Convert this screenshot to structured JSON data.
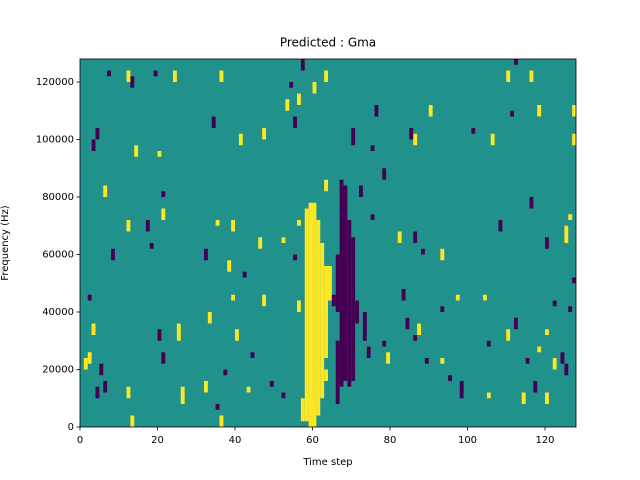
{
  "chart_data": {
    "type": "heatmap",
    "title": "Predicted : Gma",
    "x_label": "Time step",
    "y_label": "Frequency (Hz)",
    "xlim": [
      0,
      128
    ],
    "ylim": [
      0,
      128000
    ],
    "xticks": [
      0,
      20,
      40,
      60,
      80,
      100,
      120
    ],
    "yticks": [
      0,
      20000,
      40000,
      60000,
      80000,
      100000,
      120000
    ],
    "colormap": [
      {
        "value": -1,
        "color": "#440154"
      },
      {
        "value": 0,
        "color": "#21918c"
      },
      {
        "value": 1,
        "color": "#fde725"
      }
    ],
    "fill": 0,
    "cells": [
      [
        57,
        2000,
        10000,
        1
      ],
      [
        58,
        2000,
        76000,
        1
      ],
      [
        59,
        0,
        78000,
        1
      ],
      [
        60,
        0,
        78000,
        1
      ],
      [
        61,
        4000,
        72000,
        1
      ],
      [
        62,
        10000,
        64000,
        1
      ],
      [
        63,
        24000,
        56000,
        1
      ],
      [
        64,
        44000,
        56000,
        1
      ],
      [
        66,
        8000,
        30000,
        -1
      ],
      [
        66,
        40000,
        60000,
        -1
      ],
      [
        67,
        14000,
        86000,
        -1
      ],
      [
        68,
        16000,
        84000,
        -1
      ],
      [
        69,
        14000,
        72000,
        -1
      ],
      [
        70,
        16000,
        66000,
        -1
      ],
      [
        7,
        122000,
        124000,
        -1
      ],
      [
        13,
        118000,
        122000,
        -1
      ],
      [
        19,
        122000,
        124000,
        -1
      ],
      [
        34,
        104000,
        108000,
        -1
      ],
      [
        54,
        118000,
        120000,
        -1
      ],
      [
        55,
        104000,
        108000,
        -1
      ],
      [
        57,
        124000,
        128000,
        -1
      ],
      [
        70,
        98000,
        104000,
        -1
      ],
      [
        75,
        96000,
        98000,
        -1
      ],
      [
        76,
        108000,
        112000,
        -1
      ],
      [
        85,
        100000,
        104000,
        -1
      ],
      [
        101,
        102000,
        104000,
        -1
      ],
      [
        112,
        126000,
        128000,
        -1
      ],
      [
        111,
        108000,
        110000,
        -1
      ],
      [
        4,
        100000,
        104000,
        -1
      ],
      [
        3,
        96000,
        100000,
        -1
      ],
      [
        17,
        68000,
        72000,
        -1
      ],
      [
        8,
        58000,
        62000,
        -1
      ],
      [
        2,
        44000,
        46000,
        -1
      ],
      [
        18,
        62000,
        64000,
        -1
      ],
      [
        5,
        18000,
        22000,
        -1
      ],
      [
        4,
        10000,
        14000,
        -1
      ],
      [
        20,
        30000,
        34000,
        -1
      ],
      [
        21,
        22000,
        26000,
        -1
      ],
      [
        37,
        18000,
        20000,
        -1
      ],
      [
        35,
        6000,
        8000,
        -1
      ],
      [
        44,
        24000,
        26000,
        -1
      ],
      [
        49,
        14000,
        16000,
        -1
      ],
      [
        52,
        10000,
        12000,
        -1
      ],
      [
        71,
        36000,
        44000,
        -1
      ],
      [
        73,
        30000,
        40000,
        -1
      ],
      [
        74,
        24000,
        28000,
        -1
      ],
      [
        78,
        28000,
        30000,
        -1
      ],
      [
        83,
        44000,
        48000,
        -1
      ],
      [
        84,
        34000,
        38000,
        -1
      ],
      [
        86,
        30000,
        32000,
        -1
      ],
      [
        89,
        22000,
        24000,
        -1
      ],
      [
        93,
        40000,
        42000,
        -1
      ],
      [
        98,
        10000,
        16000,
        -1
      ],
      [
        105,
        28000,
        30000,
        -1
      ],
      [
        112,
        34000,
        38000,
        -1
      ],
      [
        115,
        22000,
        24000,
        -1
      ],
      [
        122,
        42000,
        44000,
        -1
      ],
      [
        127,
        50000,
        52000,
        -1
      ],
      [
        120,
        62000,
        66000,
        -1
      ],
      [
        108,
        68000,
        72000,
        -1
      ],
      [
        88,
        60000,
        62000,
        -1
      ],
      [
        86,
        64000,
        68000,
        -1
      ],
      [
        72,
        80000,
        84000,
        -1
      ],
      [
        75,
        72000,
        74000,
        -1
      ],
      [
        21,
        80000,
        82000,
        -1
      ],
      [
        32,
        58000,
        62000,
        -1
      ],
      [
        42,
        52000,
        54000,
        -1
      ],
      [
        55,
        58000,
        60000,
        -1
      ],
      [
        65,
        42000,
        46000,
        -1
      ],
      [
        78,
        86000,
        90000,
        -1
      ],
      [
        116,
        76000,
        80000,
        -1
      ],
      [
        124,
        22000,
        26000,
        -1
      ],
      [
        126,
        40000,
        42000,
        -1
      ],
      [
        117,
        12000,
        16000,
        -1
      ],
      [
        125,
        18000,
        22000,
        -1
      ],
      [
        6,
        12000,
        16000,
        -1
      ],
      [
        95,
        16000,
        18000,
        -1
      ],
      [
        12,
        120000,
        124000,
        1
      ],
      [
        24,
        120000,
        124000,
        1
      ],
      [
        36,
        120000,
        124000,
        1
      ],
      [
        53,
        110000,
        114000,
        1
      ],
      [
        56,
        112000,
        116000,
        1
      ],
      [
        60,
        116000,
        120000,
        1
      ],
      [
        63,
        120000,
        124000,
        1
      ],
      [
        90,
        108000,
        112000,
        1
      ],
      [
        110,
        120000,
        124000,
        1
      ],
      [
        116,
        120000,
        124000,
        1
      ],
      [
        118,
        108000,
        112000,
        1
      ],
      [
        127,
        108000,
        112000,
        1
      ],
      [
        127,
        98000,
        102000,
        1
      ],
      [
        106,
        98000,
        102000,
        1
      ],
      [
        86,
        98000,
        102000,
        1
      ],
      [
        41,
        98000,
        102000,
        1
      ],
      [
        47,
        100000,
        104000,
        1
      ],
      [
        14,
        94000,
        98000,
        1
      ],
      [
        20,
        94000,
        96000,
        1
      ],
      [
        6,
        80000,
        84000,
        1
      ],
      [
        12,
        68000,
        72000,
        1
      ],
      [
        21,
        72000,
        76000,
        1
      ],
      [
        35,
        70000,
        72000,
        1
      ],
      [
        39,
        68000,
        72000,
        1
      ],
      [
        46,
        62000,
        66000,
        1
      ],
      [
        52,
        64000,
        66000,
        1
      ],
      [
        56,
        70000,
        72000,
        1
      ],
      [
        38,
        54000,
        58000,
        1
      ],
      [
        39,
        44000,
        46000,
        1
      ],
      [
        63,
        82000,
        86000,
        1
      ],
      [
        82,
        64000,
        68000,
        1
      ],
      [
        93,
        58000,
        62000,
        1
      ],
      [
        97,
        44000,
        46000,
        1
      ],
      [
        104,
        44000,
        46000,
        1
      ],
      [
        110,
        30000,
        34000,
        1
      ],
      [
        120,
        32000,
        34000,
        1
      ],
      [
        118,
        26000,
        28000,
        1
      ],
      [
        125,
        64000,
        70000,
        1
      ],
      [
        126,
        72000,
        74000,
        1
      ],
      [
        3,
        32000,
        36000,
        1
      ],
      [
        2,
        22000,
        26000,
        1
      ],
      [
        12,
        10000,
        14000,
        1
      ],
      [
        13,
        0,
        4000,
        1
      ],
      [
        25,
        30000,
        36000,
        1
      ],
      [
        26,
        8000,
        14000,
        1
      ],
      [
        32,
        12000,
        16000,
        1
      ],
      [
        40,
        30000,
        34000,
        1
      ],
      [
        43,
        12000,
        14000,
        1
      ],
      [
        47,
        42000,
        46000,
        1
      ],
      [
        56,
        40000,
        44000,
        1
      ],
      [
        59,
        8000,
        10000,
        1
      ],
      [
        63,
        16000,
        20000,
        1
      ],
      [
        79,
        22000,
        26000,
        1
      ],
      [
        87,
        32000,
        36000,
        1
      ],
      [
        93,
        22000,
        24000,
        1
      ],
      [
        105,
        10000,
        12000,
        1
      ],
      [
        114,
        8000,
        12000,
        1
      ],
      [
        122,
        20000,
        24000,
        1
      ],
      [
        120,
        8000,
        12000,
        1
      ],
      [
        1,
        20000,
        24000,
        1
      ],
      [
        36,
        0,
        4000,
        1
      ],
      [
        33,
        36000,
        40000,
        1
      ]
    ]
  }
}
